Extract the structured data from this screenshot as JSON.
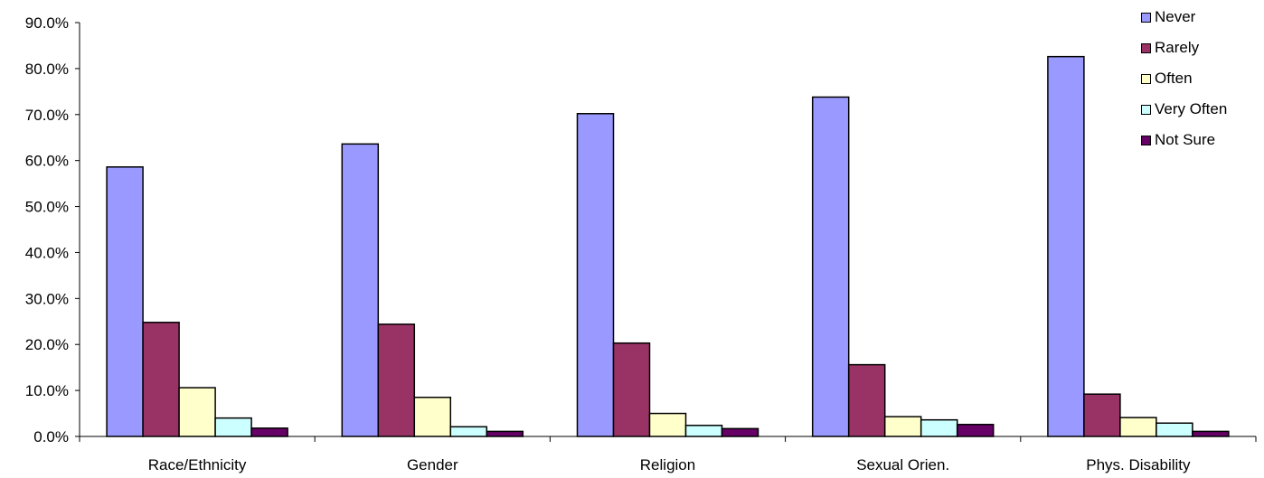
{
  "chart_data": {
    "type": "bar",
    "categories": [
      "Race/Ethnicity",
      "Gender",
      "Religion",
      "Sexual Orien.",
      "Phys. Disability"
    ],
    "series": [
      {
        "name": "Never",
        "color": "#9999ff",
        "values": [
          58.6,
          63.6,
          70.2,
          73.8,
          82.6
        ]
      },
      {
        "name": "Rarely",
        "color": "#993366",
        "values": [
          24.8,
          24.4,
          20.3,
          15.6,
          9.2
        ]
      },
      {
        "name": "Often",
        "color": "#ffffcc",
        "values": [
          10.6,
          8.5,
          5.0,
          4.3,
          4.1
        ]
      },
      {
        "name": "Very Often",
        "color": "#ccffff",
        "values": [
          4.0,
          2.1,
          2.4,
          3.6,
          2.9
        ]
      },
      {
        "name": "Not Sure",
        "color": "#660066",
        "values": [
          1.8,
          1.1,
          1.7,
          2.6,
          1.1
        ]
      }
    ],
    "yticks": [
      "0.0%",
      "10.0%",
      "20.0%",
      "30.0%",
      "40.0%",
      "50.0%",
      "60.0%",
      "70.0%",
      "80.0%",
      "90.0%"
    ],
    "ylim": [
      0,
      90
    ],
    "legend_position": "top-right",
    "grid": false
  }
}
